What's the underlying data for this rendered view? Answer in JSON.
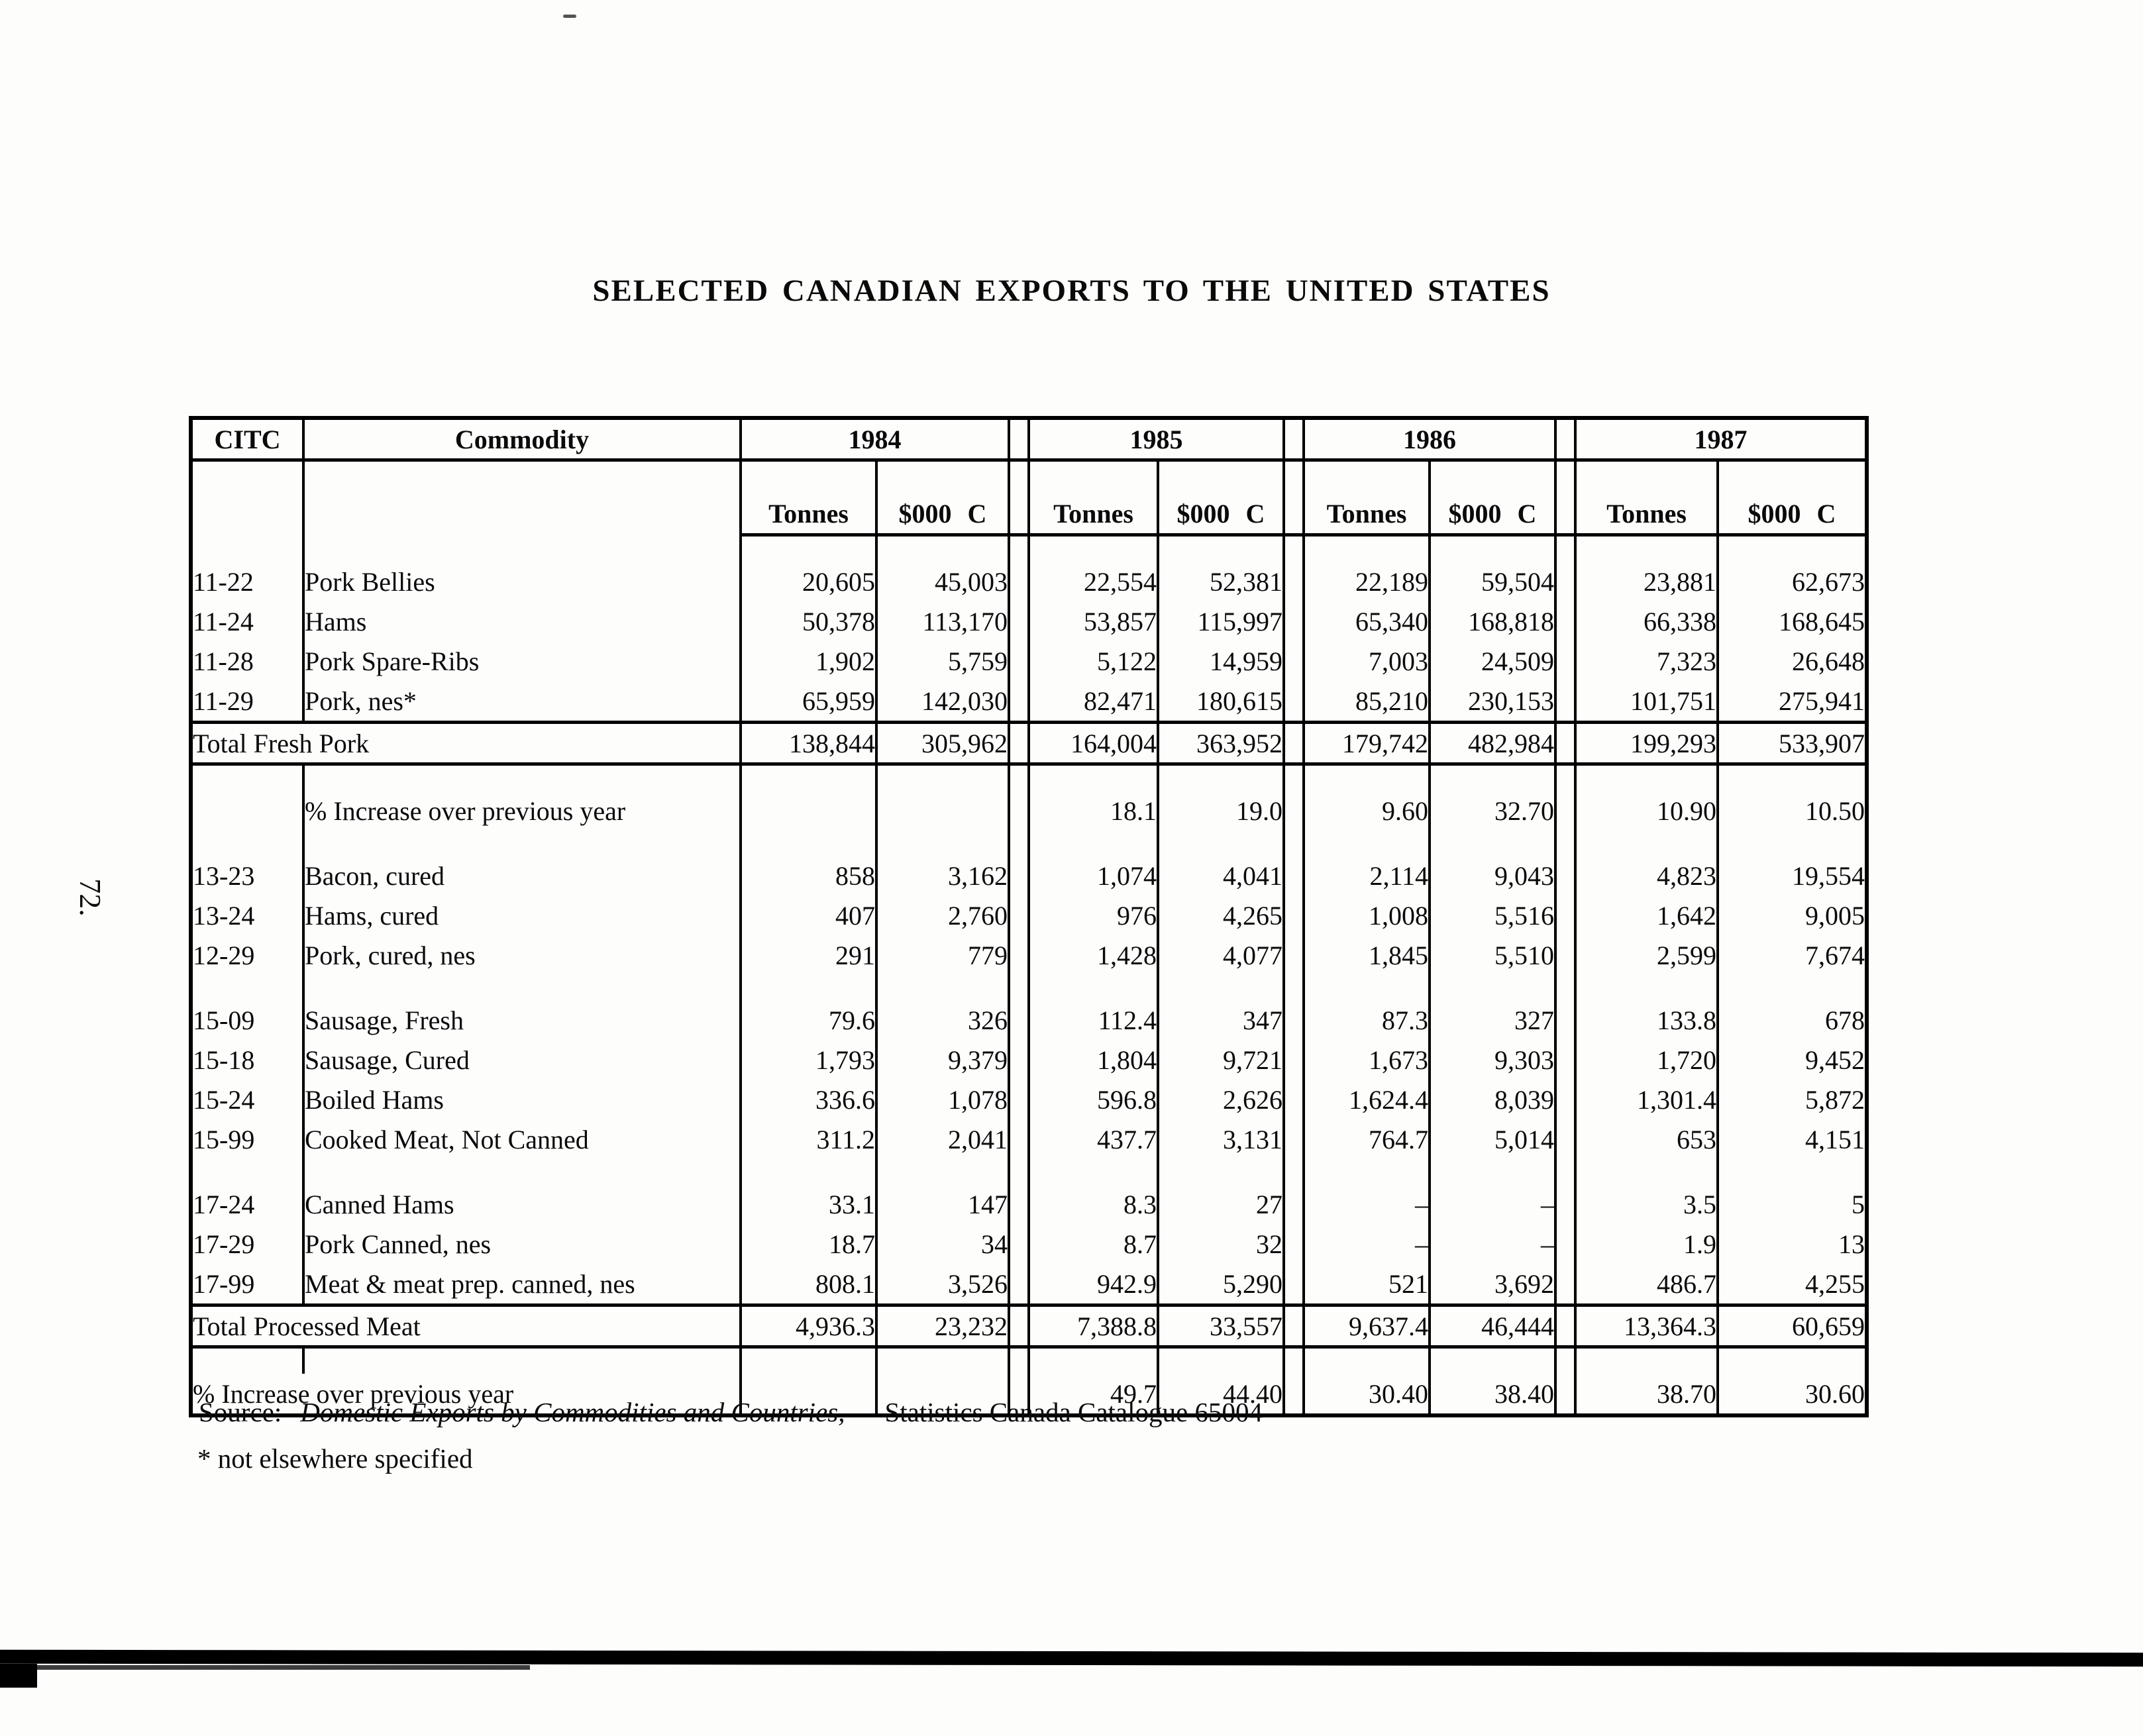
{
  "page": {
    "title": "SELECTED CANADIAN EXPORTS TO THE UNITED STATES",
    "page_number": "72.",
    "source_label": "Source:",
    "source_publication": "Domestic Exports by Commodities and Countries,",
    "source_detail": "Statistics Canada Catalogue 65004",
    "footnote": "* not elsewhere specified"
  },
  "chart_data": {
    "type": "table",
    "title": "SELECTED CANADIAN EXPORTS TO THE UNITED STATES",
    "id_column_header": "CITC",
    "commodity_column_header": "Commodity",
    "years": [
      "1984",
      "1985",
      "1986",
      "1987"
    ],
    "subheaders": [
      "Tonnes",
      "$000 C"
    ],
    "rows": [
      {
        "type": "spacer"
      },
      {
        "type": "data",
        "citc": "11-22",
        "commodity": "Pork Bellies",
        "values": [
          "20,605",
          "45,003",
          "22,554",
          "52,381",
          "22,189",
          "59,504",
          "23,881",
          "62,673"
        ]
      },
      {
        "type": "data",
        "citc": "11-24",
        "commodity": "Hams",
        "values": [
          "50,378",
          "113,170",
          "53,857",
          "115,997",
          "65,340",
          "168,818",
          "66,338",
          "168,645"
        ]
      },
      {
        "type": "data",
        "citc": "11-28",
        "commodity": "Pork Spare-Ribs",
        "values": [
          "1,902",
          "5,759",
          "5,122",
          "14,959",
          "7,003",
          "24,509",
          "7,323",
          "26,648"
        ]
      },
      {
        "type": "data",
        "citc": "11-29",
        "commodity": "Pork, nes*",
        "values": [
          "65,959",
          "142,030",
          "82,471",
          "180,615",
          "85,210",
          "230,153",
          "101,751",
          "275,941"
        ]
      },
      {
        "type": "total",
        "commodity": "Total Fresh Pork",
        "values": [
          "138,844",
          "305,962",
          "164,004",
          "363,952",
          "179,742",
          "482,984",
          "199,293",
          "533,907"
        ]
      },
      {
        "type": "spacer"
      },
      {
        "type": "percent",
        "commodity": "% Increase over previous year",
        "merged": false,
        "values": [
          "",
          "",
          "18.1",
          "19.0",
          "9.60",
          "32.70",
          "10.90",
          "10.50"
        ]
      },
      {
        "type": "spacer"
      },
      {
        "type": "data",
        "citc": "13-23",
        "commodity": "Bacon, cured",
        "values": [
          "858",
          "3,162",
          "1,074",
          "4,041",
          "2,114",
          "9,043",
          "4,823",
          "19,554"
        ]
      },
      {
        "type": "data",
        "citc": "13-24",
        "commodity": "Hams, cured",
        "values": [
          "407",
          "2,760",
          "976",
          "4,265",
          "1,008",
          "5,516",
          "1,642",
          "9,005"
        ]
      },
      {
        "type": "data",
        "citc": "12-29",
        "commodity": "Pork, cured, nes",
        "values": [
          "291",
          "779",
          "1,428",
          "4,077",
          "1,845",
          "5,510",
          "2,599",
          "7,674"
        ]
      },
      {
        "type": "spacer"
      },
      {
        "type": "data",
        "citc": "15-09",
        "commodity": "Sausage, Fresh",
        "values": [
          "79.6",
          "326",
          "112.4",
          "347",
          "87.3",
          "327",
          "133.8",
          "678"
        ]
      },
      {
        "type": "data",
        "citc": "15-18",
        "commodity": "Sausage, Cured",
        "values": [
          "1,793",
          "9,379",
          "1,804",
          "9,721",
          "1,673",
          "9,303",
          "1,720",
          "9,452"
        ]
      },
      {
        "type": "data",
        "citc": "15-24",
        "commodity": "Boiled Hams",
        "values": [
          "336.6",
          "1,078",
          "596.8",
          "2,626",
          "1,624.4",
          "8,039",
          "1,301.4",
          "5,872"
        ]
      },
      {
        "type": "data",
        "citc": "15-99",
        "commodity": "Cooked Meat, Not Canned",
        "values": [
          "311.2",
          "2,041",
          "437.7",
          "3,131",
          "764.7",
          "5,014",
          "653",
          "4,151"
        ]
      },
      {
        "type": "spacer"
      },
      {
        "type": "data",
        "citc": "17-24",
        "commodity": "Canned Hams",
        "values": [
          "33.1",
          "147",
          "8.3",
          "27",
          "–",
          "–",
          "3.5",
          "5"
        ]
      },
      {
        "type": "data",
        "citc": "17-29",
        "commodity": "Pork Canned, nes",
        "values": [
          "18.7",
          "34",
          "8.7",
          "32",
          "–",
          "–",
          "1.9",
          "13"
        ]
      },
      {
        "type": "data",
        "citc": "17-99",
        "commodity": "Meat & meat prep. canned, nes",
        "values": [
          "808.1",
          "3,526",
          "942.9",
          "5,290",
          "521",
          "3,692",
          "486.7",
          "4,255"
        ]
      },
      {
        "type": "total",
        "commodity": "Total Processed Meat",
        "values": [
          "4,936.3",
          "23,232",
          "7,388.8",
          "33,557",
          "9,637.4",
          "46,444",
          "13,364.3",
          "60,659"
        ]
      },
      {
        "type": "spacer"
      },
      {
        "type": "percent",
        "commodity": "% Increase over previous year",
        "merged": true,
        "values": [
          "",
          "",
          "49.7",
          "44.40",
          "30.40",
          "38.40",
          "38.70",
          "30.60"
        ]
      }
    ]
  }
}
